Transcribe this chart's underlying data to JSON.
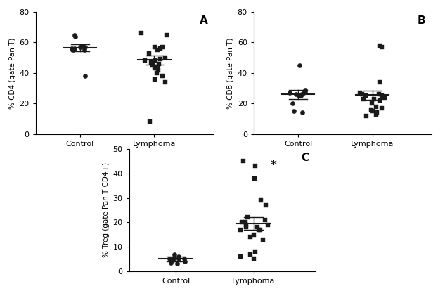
{
  "panel_A": {
    "label": "A",
    "ylabel": "% CD4 (gate Pan T)",
    "ylim": [
      0,
      80
    ],
    "yticks": [
      0,
      20,
      40,
      60,
      80
    ],
    "control_dots": [
      57,
      56,
      58,
      55,
      57,
      64,
      65,
      38,
      56,
      55,
      57
    ],
    "control_mean": 56.5,
    "control_sem_low": 54.0,
    "control_sem_high": 59.0,
    "lymphoma_dots": [
      65,
      66,
      57,
      57,
      55,
      56,
      53,
      50,
      49,
      48,
      48,
      47,
      46,
      46,
      45,
      44,
      43,
      42,
      40,
      38,
      36,
      34,
      8
    ],
    "lymphoma_mean": 48.5,
    "lymphoma_sem_low": 45.5,
    "lymphoma_sem_high": 51.5
  },
  "panel_B": {
    "label": "B",
    "ylabel": "% CD8 (gate Pan T)",
    "ylim": [
      0,
      80
    ],
    "yticks": [
      0,
      20,
      40,
      60,
      80
    ],
    "control_dots": [
      45,
      29,
      28,
      27,
      27,
      26,
      26,
      25,
      25,
      20,
      15,
      14
    ],
    "control_mean": 26.0,
    "control_sem_low": 23.0,
    "control_sem_high": 29.0,
    "lymphoma_dots": [
      58,
      57,
      34,
      27,
      26,
      26,
      25,
      25,
      25,
      24,
      23,
      23,
      22,
      20,
      18,
      17,
      16,
      15,
      14,
      13,
      12
    ],
    "lymphoma_mean": 25.5,
    "lymphoma_sem_low": 22.5,
    "lymphoma_sem_high": 28.5
  },
  "panel_C": {
    "label": "C",
    "ylabel": "% Treg (gate Pan T CD4+)",
    "ylim": [
      0,
      50
    ],
    "yticks": [
      0,
      10,
      20,
      30,
      40,
      50
    ],
    "control_dots": [
      6,
      5.5,
      5,
      5,
      5,
      4.5,
      4,
      3.5,
      3,
      7
    ],
    "control_mean": 5.0,
    "control_sem_low": 4.0,
    "control_sem_high": 6.0,
    "lymphoma_dots": [
      45,
      43,
      38,
      29,
      27,
      20,
      20,
      19,
      19,
      18,
      18,
      17,
      17,
      17,
      21,
      22,
      8,
      7,
      6,
      5,
      13,
      14,
      15
    ],
    "lymphoma_mean": 19.5,
    "lymphoma_sem_low": 17.0,
    "lymphoma_sem_high": 22.0,
    "significance": "*"
  },
  "x_labels": [
    "Control",
    "Lymphoma"
  ],
  "x_positions": [
    1,
    2
  ],
  "marker_control": "o",
  "marker_lymphoma": "s",
  "marker_size": 4.5,
  "color": "#1a1a1a",
  "background": "#ffffff"
}
